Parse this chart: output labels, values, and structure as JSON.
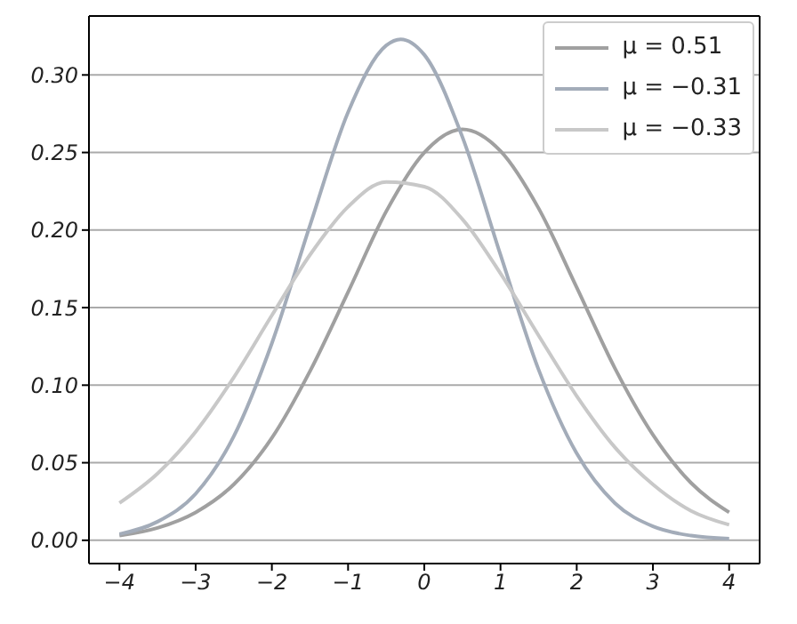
{
  "chart_data": {
    "type": "line",
    "xlim": [
      -4.4,
      4.4
    ],
    "ylim": [
      -0.015,
      0.338
    ],
    "xticks": [
      {
        "value": -4,
        "label": "−4"
      },
      {
        "value": -3,
        "label": "−3"
      },
      {
        "value": -2,
        "label": "−2"
      },
      {
        "value": -1,
        "label": "−1"
      },
      0,
      1,
      2,
      3,
      4
    ],
    "yticks": [
      {
        "value": 0,
        "label": "0.00"
      },
      {
        "value": 0.05,
        "label": "0.05"
      },
      {
        "value": 0.1,
        "label": "0.10"
      },
      {
        "value": 0.15,
        "label": "0.15"
      },
      {
        "value": 0.2,
        "label": "0.20"
      },
      {
        "value": 0.25,
        "label": "0.25"
      },
      {
        "value": 0.3,
        "label": "0.30"
      }
    ],
    "grid": "y",
    "legend": "top right",
    "marker": "none",
    "line_style": "solid",
    "series": [
      {
        "name": "μ = 0.51",
        "color": "#a0a0a0",
        "x": [
          -4,
          -3.5,
          -3,
          -2.5,
          -2,
          -1.5,
          -1,
          -0.5,
          0,
          0.5,
          1,
          1.5,
          2,
          2.5,
          3,
          3.5,
          4
        ],
        "values": [
          0.003,
          0.008,
          0.018,
          0.036,
          0.066,
          0.109,
          0.16,
          0.212,
          0.25,
          0.265,
          0.251,
          0.214,
          0.163,
          0.111,
          0.068,
          0.037,
          0.018
        ]
      },
      {
        "name": "μ = −0.31",
        "color": "#a3acb9",
        "x": [
          -4,
          -3.5,
          -3,
          -2.5,
          -2,
          -1.5,
          -1,
          -0.5,
          -0.31,
          0,
          0.5,
          1,
          1.5,
          2,
          2.5,
          3,
          3.5,
          4
        ],
        "values": [
          0.004,
          0.012,
          0.03,
          0.067,
          0.127,
          0.203,
          0.276,
          0.319,
          0.323,
          0.313,
          0.26,
          0.184,
          0.11,
          0.056,
          0.024,
          0.009,
          0.003,
          0.001
        ]
      },
      {
        "name": "μ = −0.33",
        "color": "#c8c8c8",
        "x": [
          -4,
          -3.5,
          -3,
          -2.5,
          -2,
          -1.5,
          -1,
          -0.5,
          0,
          0.5,
          1,
          1.5,
          2,
          2.5,
          3,
          3.5,
          4
        ],
        "values": [
          0.024,
          0.043,
          0.07,
          0.105,
          0.145,
          0.184,
          0.215,
          0.231,
          0.228,
          0.207,
          0.172,
          0.132,
          0.093,
          0.06,
          0.036,
          0.019,
          0.01
        ]
      }
    ]
  }
}
